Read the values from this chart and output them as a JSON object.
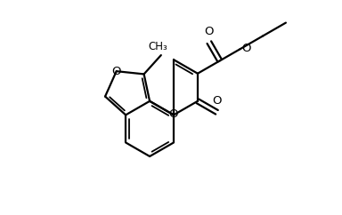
{
  "background": "#ffffff",
  "line_color": "#000000",
  "line_width": 1.6,
  "font_size": 9.5,
  "figsize": [
    3.84,
    2.42
  ],
  "dpi": 100,
  "xlim": [
    0,
    8.0
  ],
  "ylim": [
    0,
    5.0
  ]
}
